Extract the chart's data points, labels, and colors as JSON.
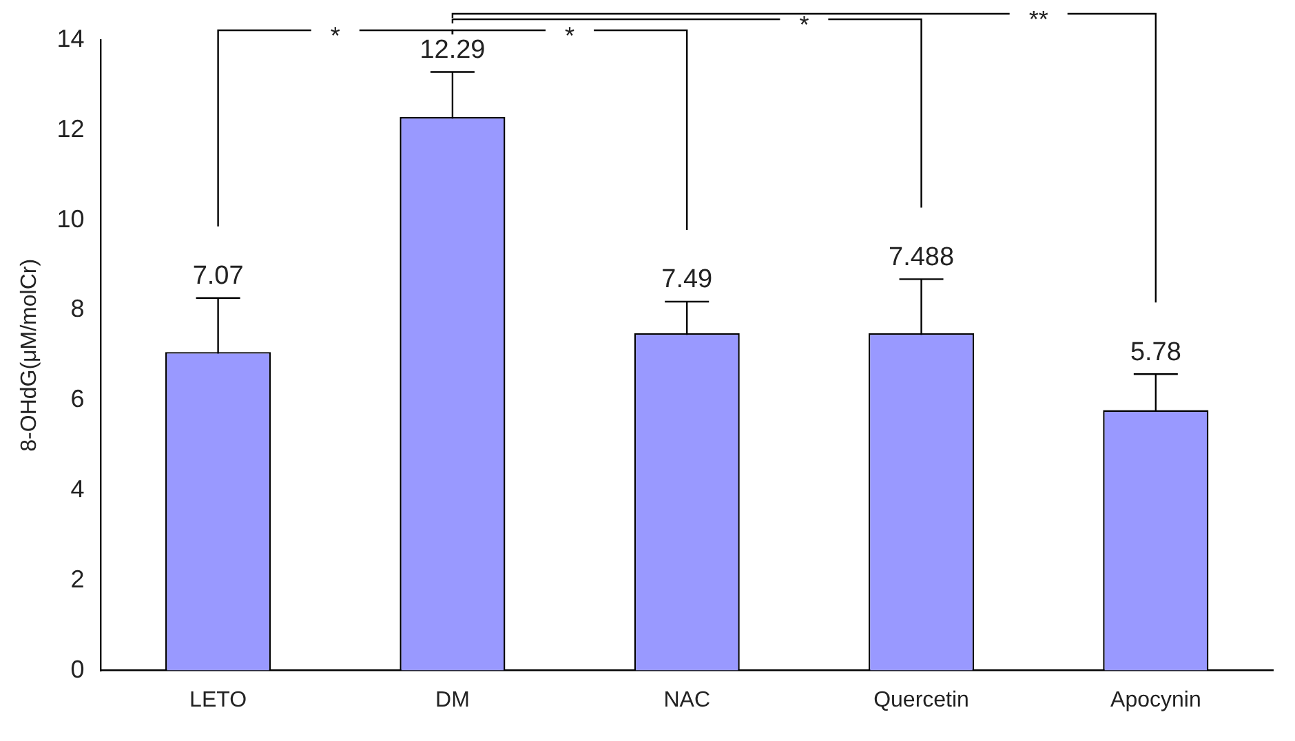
{
  "chart_data": {
    "type": "bar",
    "ylabel": "8-OHdG(μM/molCr)",
    "categories": [
      "LETO",
      "DM",
      "NAC",
      "Quercetin",
      "Apocynin"
    ],
    "values": [
      7.07,
      12.29,
      7.49,
      7.488,
      5.78
    ],
    "errors": [
      1.2,
      1.0,
      0.7,
      1.2,
      0.8
    ],
    "color": "#9999ff",
    "ylim": [
      0,
      14
    ],
    "yticks": [
      0,
      2,
      4,
      6,
      8,
      10,
      12,
      14
    ],
    "grid": false,
    "legend": false,
    "data_labels": true,
    "annotations": [
      "*",
      "*",
      "*",
      "**"
    ]
  }
}
